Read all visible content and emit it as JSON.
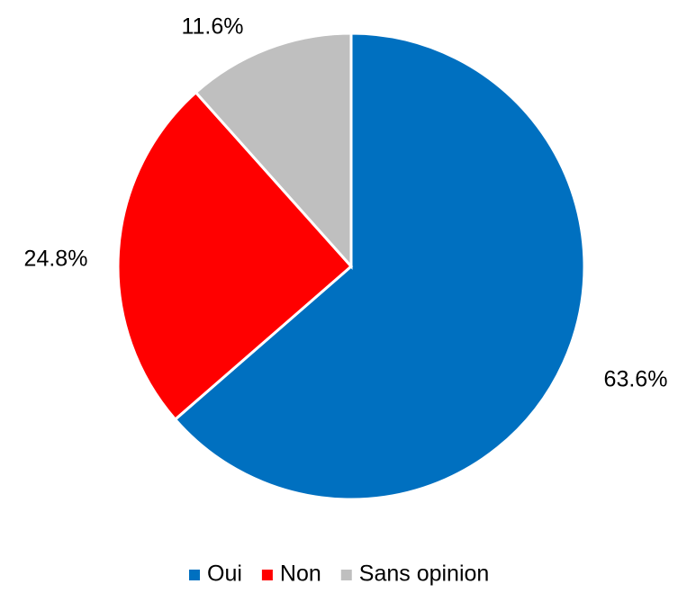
{
  "chart_data": {
    "type": "pie",
    "title": "",
    "legend_position": "bottom",
    "slices": [
      {
        "label": "Oui",
        "value": 63.6,
        "value_label": "63.6%",
        "color": "#0070c0"
      },
      {
        "label": "Non",
        "value": 24.8,
        "value_label": "24.8%",
        "color": "#ff0000"
      },
      {
        "label": "Sans opinion",
        "value": 11.6,
        "value_label": "11.6%",
        "color": "#bfbfbf"
      }
    ]
  }
}
